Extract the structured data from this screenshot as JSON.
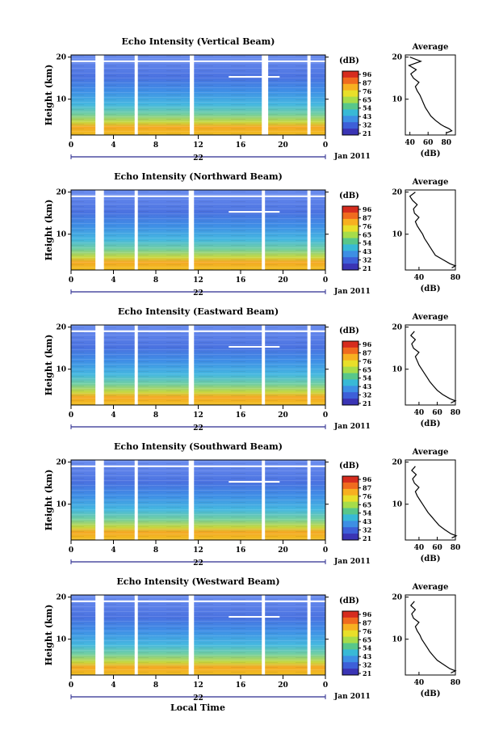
{
  "figure": {
    "xlabel": "Local Time",
    "date_label": "Jan 2011",
    "day_label": "22",
    "colorbar_unit": "(dB)",
    "avg_title": "Average",
    "avg_xlabel": "(dB)"
  },
  "colorbar": {
    "ticks": [
      "96",
      "87",
      "76",
      "65",
      "54",
      "43",
      "32",
      "21"
    ],
    "colors": [
      "#d62c1e",
      "#f06b1e",
      "#f7b020",
      "#e8df2a",
      "#a6dc4a",
      "#58c78a",
      "#38b9d6",
      "#3d8fe4",
      "#3d5fd8",
      "#3a34b4"
    ]
  },
  "chart_data": [
    {
      "type": "heatmap",
      "title": "Echo Intensity (Vertical Beam)",
      "xlabel": "",
      "ylabel": "Height (km)",
      "x_ticks": [
        "0",
        "4",
        "8",
        "12",
        "16",
        "20",
        "0"
      ],
      "y_ticks": [
        "20",
        "10"
      ],
      "xlim": [
        0,
        24
      ],
      "ylim": [
        1.5,
        20.5
      ],
      "data_gaps_hours": [
        [
          2.3,
          3.1
        ],
        [
          6.0,
          6.3
        ],
        [
          11.2,
          11.6
        ],
        [
          18.0,
          18.6
        ],
        [
          22.3,
          22.6
        ]
      ],
      "colorbar_range_db": [
        21,
        96
      ],
      "average_profile": {
        "xlabel": "(dB)",
        "x_ticks": [
          "40",
          "60",
          "80"
        ],
        "xlim": [
          35,
          90
        ],
        "y_ticks": [
          "20",
          "10"
        ],
        "height_km": [
          2,
          2.5,
          3,
          3.5,
          4,
          5,
          6,
          7,
          8,
          9,
          10,
          11,
          12,
          13,
          14,
          15,
          16,
          17,
          18,
          19,
          20
        ],
        "db": [
          80,
          86,
          83,
          78,
          74,
          68,
          63,
          60,
          57,
          55,
          53,
          51,
          48,
          46,
          50,
          44,
          41,
          47,
          39,
          52,
          40
        ]
      }
    },
    {
      "type": "heatmap",
      "title": "Echo Intensity (Northward Beam)",
      "xlabel": "",
      "ylabel": "Height (km)",
      "x_ticks": [
        "0",
        "4",
        "8",
        "12",
        "16",
        "20",
        "0"
      ],
      "y_ticks": [
        "20",
        "10"
      ],
      "xlim": [
        0,
        24
      ],
      "ylim": [
        1.5,
        20.5
      ],
      "data_gaps_hours": [
        [
          2.3,
          3.1
        ],
        [
          6.0,
          6.3
        ],
        [
          11.1,
          11.6
        ],
        [
          18.0,
          18.3
        ],
        [
          22.3,
          22.6
        ]
      ],
      "colorbar_range_db": [
        21,
        96
      ],
      "average_profile": {
        "xlabel": "(dB)",
        "x_ticks": [
          "40",
          "80"
        ],
        "xlim": [
          25,
          80
        ],
        "y_ticks": [
          "20",
          "10"
        ],
        "height_km": [
          2,
          2.5,
          3,
          4,
          5,
          6,
          7,
          8,
          9,
          10,
          11,
          12,
          13,
          14,
          15,
          16,
          17,
          18,
          19,
          20
        ],
        "db": [
          76,
          80,
          74,
          66,
          58,
          55,
          52,
          49,
          46,
          44,
          41,
          38,
          36,
          40,
          35,
          34,
          38,
          33,
          30,
          36
        ]
      }
    },
    {
      "type": "heatmap",
      "title": "Echo Intensity (Eastward Beam)",
      "xlabel": "",
      "ylabel": "Height (km)",
      "x_ticks": [
        "0",
        "4",
        "8",
        "12",
        "16",
        "20",
        "0"
      ],
      "y_ticks": [
        "20",
        "10"
      ],
      "xlim": [
        0,
        24
      ],
      "ylim": [
        1.5,
        20.5
      ],
      "data_gaps_hours": [
        [
          2.3,
          3.1
        ],
        [
          6.0,
          6.3
        ],
        [
          11.1,
          11.6
        ],
        [
          18.0,
          18.3
        ],
        [
          22.3,
          22.6
        ]
      ],
      "colorbar_range_db": [
        21,
        96
      ],
      "average_profile": {
        "xlabel": "(dB)",
        "x_ticks": [
          "40",
          "60",
          "80"
        ],
        "xlim": [
          25,
          80
        ],
        "y_ticks": [
          "20",
          "10"
        ],
        "height_km": [
          2,
          2.5,
          3,
          4,
          5,
          6,
          7,
          8,
          9,
          10,
          11,
          12,
          13,
          14,
          15,
          16,
          17,
          18,
          19
        ],
        "db": [
          75,
          80,
          74,
          66,
          60,
          56,
          52,
          49,
          46,
          43,
          40,
          38,
          36,
          40,
          34,
          32,
          36,
          31,
          35
        ]
      }
    },
    {
      "type": "heatmap",
      "title": "Echo Intensity (Southward Beam)",
      "xlabel": "",
      "ylabel": "Height (km)",
      "x_ticks": [
        "0",
        "4",
        "8",
        "12",
        "16",
        "20",
        "0"
      ],
      "y_ticks": [
        "20",
        "10"
      ],
      "xlim": [
        0,
        24
      ],
      "ylim": [
        1.5,
        20.5
      ],
      "data_gaps_hours": [
        [
          2.3,
          3.1
        ],
        [
          6.0,
          6.3
        ],
        [
          11.1,
          11.6
        ],
        [
          18.0,
          18.3
        ],
        [
          22.3,
          22.6
        ]
      ],
      "colorbar_range_db": [
        21,
        96
      ],
      "average_profile": {
        "xlabel": "(dB)",
        "x_ticks": [
          "40",
          "60",
          "80"
        ],
        "xlim": [
          25,
          80
        ],
        "y_ticks": [
          "20",
          "10"
        ],
        "height_km": [
          2,
          2.5,
          3,
          4,
          5,
          6,
          7,
          8,
          9,
          10,
          11,
          12,
          13,
          14,
          15,
          16,
          17,
          18,
          19
        ],
        "db": [
          76,
          81,
          75,
          68,
          62,
          58,
          54,
          50,
          47,
          44,
          41,
          38,
          36,
          40,
          35,
          33,
          37,
          32,
          36
        ]
      }
    },
    {
      "type": "heatmap",
      "title": "Echo Intensity (Westward Beam)",
      "xlabel": "Local Time",
      "ylabel": "Height (km)",
      "x_ticks": [
        "0",
        "4",
        "8",
        "12",
        "16",
        "20",
        "0"
      ],
      "y_ticks": [
        "20",
        "10"
      ],
      "xlim": [
        0,
        24
      ],
      "ylim": [
        1.5,
        20.5
      ],
      "data_gaps_hours": [
        [
          2.3,
          3.1
        ],
        [
          6.0,
          6.3
        ],
        [
          11.1,
          11.6
        ],
        [
          18.0,
          18.3
        ],
        [
          22.3,
          22.6
        ]
      ],
      "colorbar_range_db": [
        21,
        96
      ],
      "average_profile": {
        "xlabel": "(dB)",
        "x_ticks": [
          "40",
          "80"
        ],
        "xlim": [
          25,
          80
        ],
        "y_ticks": [
          "20",
          "10"
        ],
        "height_km": [
          2,
          2.5,
          3,
          4,
          5,
          6,
          7,
          8,
          9,
          10,
          11,
          12,
          13,
          14,
          15,
          16,
          17,
          18,
          19
        ],
        "db": [
          75,
          80,
          74,
          67,
          60,
          56,
          52,
          49,
          46,
          43,
          41,
          38,
          36,
          40,
          34,
          32,
          36,
          31,
          35
        ]
      }
    }
  ]
}
